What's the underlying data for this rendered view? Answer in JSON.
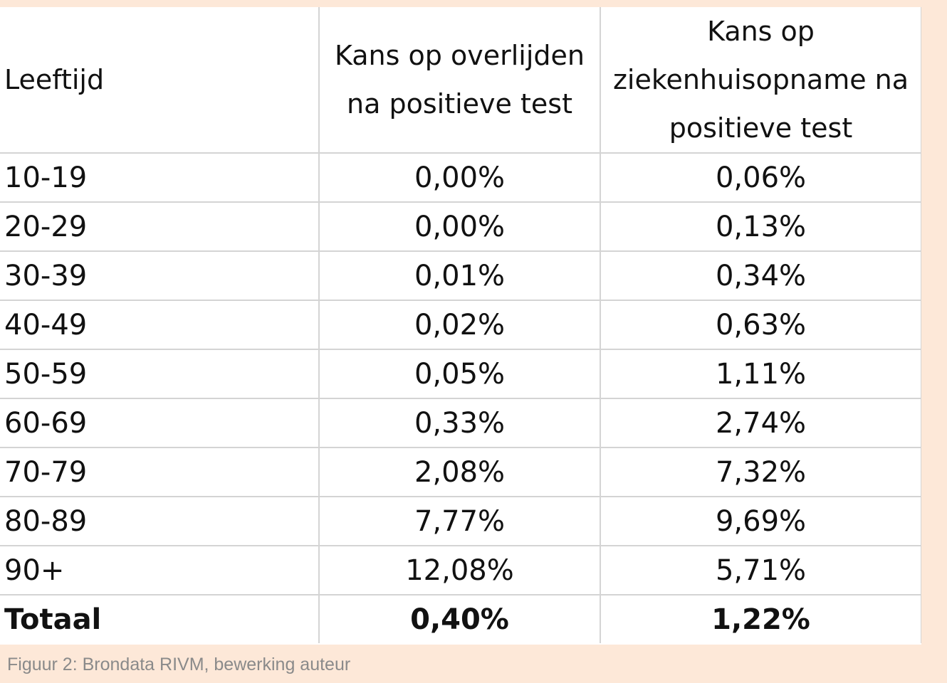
{
  "chart_data": {
    "type": "table",
    "columns": [
      "Leeftijd",
      "Kans op overlijden na positieve test",
      "Kans op ziekenhuisopname na positieve test"
    ],
    "header_lines": [
      [
        "Leeftijd"
      ],
      [
        "Kans op overlijden",
        "na positieve test"
      ],
      [
        "Kans op",
        "ziekenhuisopname na",
        "positieve test"
      ]
    ],
    "rows": [
      {
        "age": "10-19",
        "death": "0,00%",
        "hospital": "0,06%"
      },
      {
        "age": "20-29",
        "death": "0,00%",
        "hospital": "0,13%"
      },
      {
        "age": "30-39",
        "death": "0,01%",
        "hospital": "0,34%"
      },
      {
        "age": "40-49",
        "death": "0,02%",
        "hospital": "0,63%"
      },
      {
        "age": "50-59",
        "death": "0,05%",
        "hospital": "1,11%"
      },
      {
        "age": "60-69",
        "death": "0,33%",
        "hospital": "2,74%"
      },
      {
        "age": "70-79",
        "death": "2,08%",
        "hospital": "7,32%"
      },
      {
        "age": "80-89",
        "death": "7,77%",
        "hospital": "9,69%"
      },
      {
        "age": "90+",
        "death": "12,08%",
        "hospital": "5,71%"
      }
    ],
    "total": {
      "age": "Totaal",
      "death": "0,40%",
      "hospital": "1,22%"
    }
  },
  "caption": "Figuur 2: Brondata RIVM, bewerking auteur",
  "colors": {
    "page_background": "#fde8d8",
    "table_background": "#ffffff",
    "grid_lines": "#d4d4d4",
    "caption_text": "#8a8a8a"
  }
}
